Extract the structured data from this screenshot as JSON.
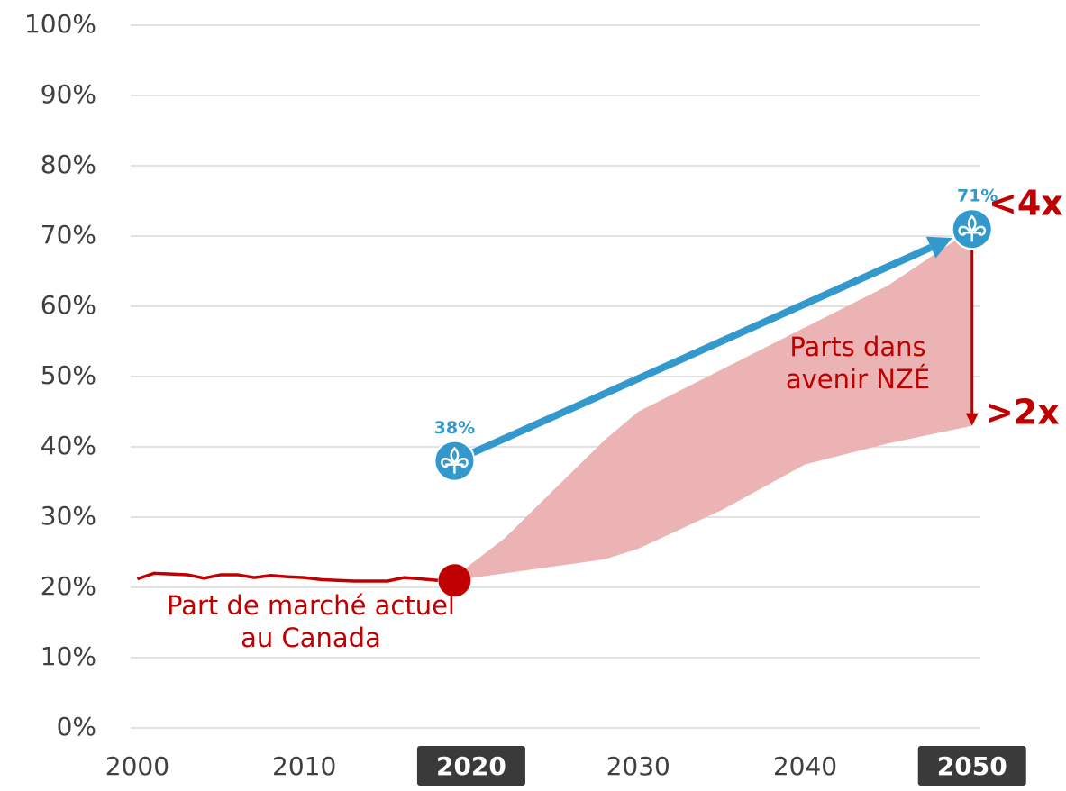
{
  "chart_data": {
    "type": "line",
    "xlim": [
      1999.6,
      2050.5
    ],
    "ylim": [
      0,
      100
    ],
    "xticks": [
      2000,
      2010,
      2020,
      2030,
      2040,
      2050
    ],
    "highlighted_xticks": [
      2020,
      2050
    ],
    "yticks": [
      {
        "value": 0,
        "label": "0%"
      },
      {
        "value": 10,
        "label": "10%"
      },
      {
        "value": 20,
        "label": "20%"
      },
      {
        "value": 30,
        "label": "30%"
      },
      {
        "value": 40,
        "label": "40%"
      },
      {
        "value": 50,
        "label": "50%"
      },
      {
        "value": 60,
        "label": "60%"
      },
      {
        "value": 70,
        "label": "70%"
      },
      {
        "value": 80,
        "label": "80%"
      },
      {
        "value": 90,
        "label": "90%"
      },
      {
        "value": 100,
        "label": "100%"
      }
    ],
    "grid": true,
    "band": {
      "color": "#ebb3b3",
      "x": [
        2019,
        2022,
        2025,
        2028,
        2030,
        2035,
        2040,
        2045,
        2050
      ],
      "upper": [
        21.5,
        27,
        34,
        41,
        45,
        51,
        57,
        63,
        71
      ],
      "lower": [
        21,
        22,
        23,
        24,
        25.5,
        31,
        37.5,
        40.5,
        43
      ]
    },
    "series": [
      {
        "kind": "history",
        "color": "#c00000",
        "x": [
          2000,
          2001,
          2002,
          2003,
          2004,
          2005,
          2006,
          2007,
          2008,
          2009,
          2010,
          2011,
          2012,
          2013,
          2014,
          2015,
          2016,
          2017,
          2018
        ],
        "values": [
          21.2,
          22,
          21.9,
          21.8,
          21.3,
          21.8,
          21.8,
          21.4,
          21.7,
          21.5,
          21.4,
          21.1,
          21.0,
          20.9,
          20.9,
          20.9,
          21.4,
          21.2,
          21.0
        ]
      },
      {
        "kind": "current",
        "color": "#c00000",
        "x": [
          2019
        ],
        "values": [
          21
        ]
      },
      {
        "kind": "quebec",
        "color": "#3399cc",
        "x": [
          2019,
          2050
        ],
        "values": [
          38,
          71
        ],
        "value_labels": [
          "38%",
          "71%"
        ]
      }
    ],
    "annotations": {
      "current_market": [
        "Part de marché actuel",
        "au Canada"
      ],
      "nze_share": [
        "Parts dans",
        "avenir NZÉ"
      ],
      "upper_ratio": "<4x",
      "lower_ratio": ">2x"
    }
  }
}
